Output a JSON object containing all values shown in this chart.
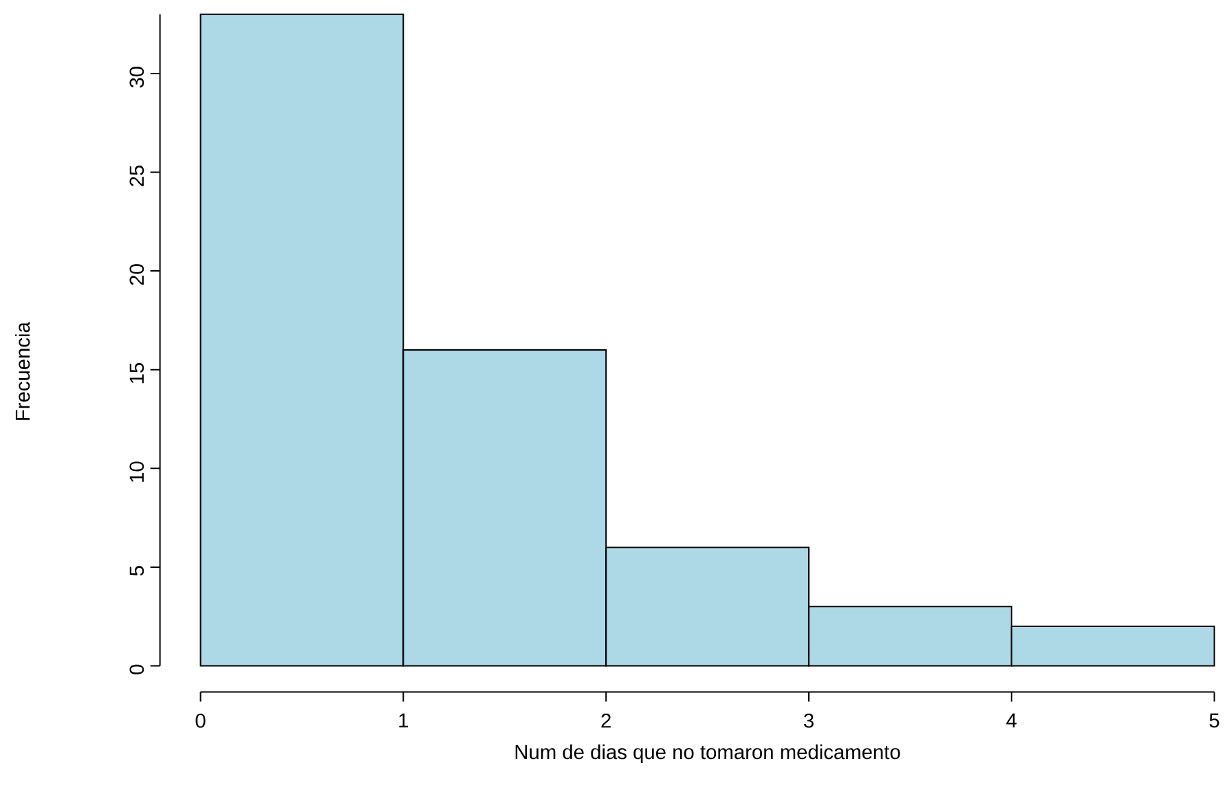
{
  "chart_data": {
    "type": "histogram",
    "xlabel": "Num de dias que no tomaron medicamento",
    "ylabel": "Frecuencia",
    "bins": [
      0,
      1,
      2,
      3,
      4,
      5
    ],
    "values": [
      33,
      16,
      6,
      3,
      2
    ],
    "color": "#add8e6",
    "xlim": [
      0,
      5
    ],
    "ylim": [
      0,
      33
    ],
    "xticks": [
      0,
      1,
      2,
      3,
      4,
      5
    ],
    "yticks": [
      0,
      5,
      10,
      15,
      20,
      25,
      30
    ]
  }
}
